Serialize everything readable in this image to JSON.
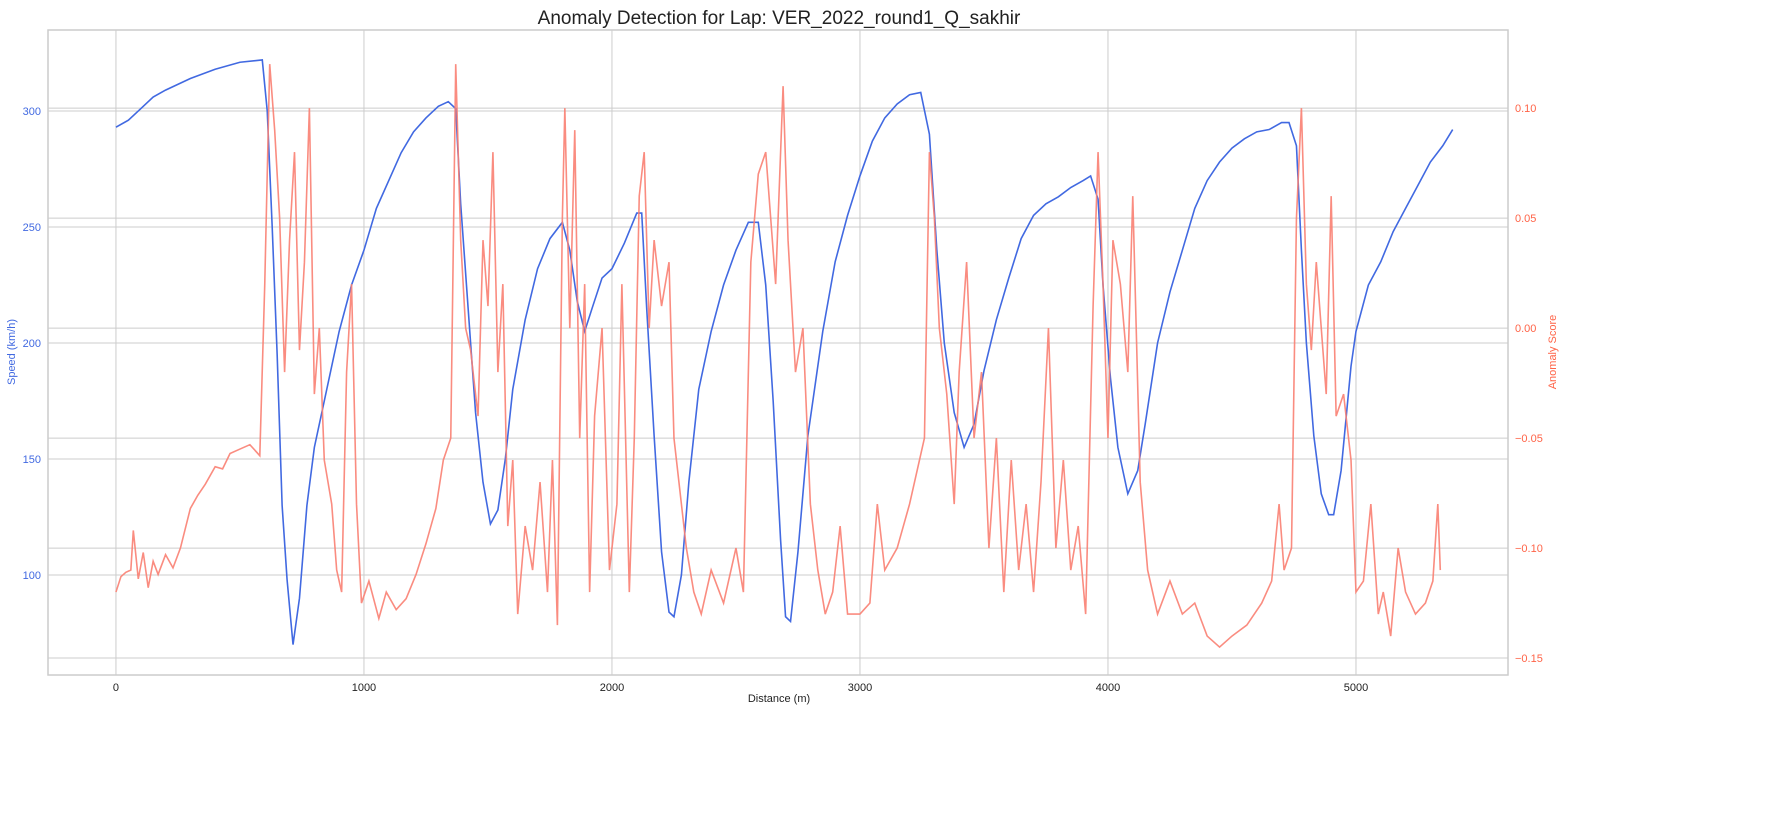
{
  "chart_data": {
    "type": "line",
    "title": "Anomaly Detection for Lap: VER_2022_round1_Q_sakhir",
    "xlabel": "Distance (m)",
    "ylabel": "Speed (km/h)",
    "y2label": "Anomaly Score",
    "xlim": [
      -274,
      5613
    ],
    "ylim": [
      56.9,
      334.9
    ],
    "y2lim": [
      -0.1577,
      0.1355
    ],
    "xticks": [
      0,
      1000,
      2000,
      3000,
      4000,
      5000
    ],
    "yticks": [
      100,
      150,
      200,
      250,
      300
    ],
    "y2ticks": [
      -0.15,
      -0.1,
      -0.05,
      0.0,
      0.05,
      0.1
    ],
    "y2tick_labels": [
      "−0.15",
      "−0.10",
      "−0.05",
      "0.00",
      "0.05",
      "0.10"
    ],
    "grid": true,
    "colors": {
      "speed": "#4169E1",
      "anomaly": "#FA8072",
      "anomaly_axis": "#FF6347"
    },
    "series": [
      {
        "name": "Speed",
        "axis": "left",
        "x": [
          0,
          50,
          100,
          150,
          200,
          300,
          400,
          500,
          590,
          610,
          630,
          650,
          670,
          690,
          714,
          740,
          770,
          800,
          850,
          900,
          950,
          1000,
          1050,
          1100,
          1150,
          1200,
          1250,
          1300,
          1340,
          1370,
          1390,
          1420,
          1450,
          1480,
          1510,
          1540,
          1570,
          1600,
          1650,
          1700,
          1750,
          1800,
          1830,
          1860,
          1890,
          1920,
          1960,
          2000,
          2050,
          2100,
          2120,
          2140,
          2170,
          2200,
          2230,
          2250,
          2280,
          2310,
          2350,
          2400,
          2450,
          2500,
          2550,
          2590,
          2620,
          2650,
          2680,
          2700,
          2720,
          2750,
          2790,
          2850,
          2900,
          2950,
          3000,
          3050,
          3100,
          3150,
          3200,
          3245,
          3280,
          3310,
          3340,
          3380,
          3420,
          3460,
          3500,
          3550,
          3600,
          3650,
          3700,
          3750,
          3800,
          3850,
          3900,
          3930,
          3960,
          3980,
          4010,
          4040,
          4080,
          4120,
          4150,
          4200,
          4250,
          4300,
          4350,
          4400,
          4450,
          4500,
          4550,
          4600,
          4650,
          4700,
          4730,
          4760,
          4780,
          4800,
          4830,
          4860,
          4890,
          4910,
          4940,
          4980,
          5000,
          5050,
          5100,
          5150,
          5200,
          5250,
          5300,
          5350,
          5390
        ],
        "y": [
          293,
          296,
          301,
          306,
          309,
          314,
          318,
          321,
          322,
          300,
          250,
          195,
          130,
          98,
          70,
          90,
          130,
          155,
          180,
          205,
          225,
          240,
          258,
          270,
          282,
          291,
          297,
          302,
          304,
          301,
          260,
          215,
          170,
          140,
          122,
          128,
          150,
          180,
          210,
          232,
          245,
          252,
          240,
          218,
          205,
          215,
          228,
          232,
          243,
          256,
          256,
          215,
          160,
          110,
          84,
          82,
          100,
          140,
          180,
          205,
          225,
          240,
          252,
          252,
          225,
          175,
          115,
          82,
          80,
          110,
          160,
          205,
          235,
          255,
          272,
          287,
          297,
          303,
          307,
          308,
          290,
          240,
          200,
          170,
          155,
          165,
          188,
          210,
          228,
          245,
          255,
          260,
          263,
          267,
          270,
          272,
          262,
          225,
          185,
          155,
          135,
          145,
          165,
          200,
          222,
          240,
          258,
          270,
          278,
          284,
          288,
          291,
          292,
          295,
          295,
          285,
          240,
          200,
          160,
          135,
          126,
          126,
          145,
          190,
          205,
          225,
          235,
          248,
          258,
          268,
          278,
          285,
          292
        ]
      },
      {
        "name": "Anomaly Score",
        "axis": "right",
        "x": [
          0,
          20,
          40,
          60,
          70,
          90,
          110,
          130,
          150,
          170,
          200,
          230,
          260,
          300,
          330,
          360,
          400,
          430,
          460,
          500,
          540,
          580,
          600,
          620,
          640,
          660,
          680,
          700,
          720,
          740,
          760,
          780,
          800,
          820,
          840,
          870,
          890,
          910,
          930,
          950,
          970,
          990,
          1020,
          1060,
          1090,
          1130,
          1170,
          1210,
          1250,
          1290,
          1320,
          1350,
          1370,
          1390,
          1410,
          1430,
          1460,
          1480,
          1500,
          1520,
          1540,
          1560,
          1580,
          1600,
          1620,
          1650,
          1680,
          1710,
          1740,
          1760,
          1780,
          1800,
          1810,
          1830,
          1850,
          1870,
          1890,
          1910,
          1930,
          1960,
          1990,
          2020,
          2040,
          2070,
          2090,
          2110,
          2130,
          2150,
          2170,
          2200,
          2230,
          2250,
          2270,
          2300,
          2330,
          2360,
          2400,
          2450,
          2500,
          2530,
          2560,
          2590,
          2620,
          2640,
          2660,
          2690,
          2710,
          2740,
          2770,
          2800,
          2830,
          2860,
          2890,
          2920,
          2950,
          3000,
          3040,
          3070,
          3100,
          3150,
          3200,
          3240,
          3260,
          3280,
          3300,
          3320,
          3350,
          3380,
          3400,
          3430,
          3460,
          3490,
          3520,
          3550,
          3580,
          3610,
          3640,
          3670,
          3700,
          3730,
          3760,
          3790,
          3820,
          3850,
          3880,
          3910,
          3940,
          3960,
          3980,
          4000,
          4020,
          4050,
          4080,
          4100,
          4130,
          4160,
          4200,
          4250,
          4300,
          4350,
          4400,
          4450,
          4500,
          4560,
          4620,
          4660,
          4690,
          4710,
          4740,
          4760,
          4780,
          4800,
          4820,
          4840,
          4860,
          4880,
          4900,
          4920,
          4950,
          4980,
          5000,
          5030,
          5060,
          5090,
          5110,
          5140,
          5170,
          5200,
          5240,
          5280,
          5310,
          5330,
          5340
        ],
        "y": [
          -0.12,
          -0.113,
          -0.111,
          -0.11,
          -0.092,
          -0.114,
          -0.102,
          -0.118,
          -0.106,
          -0.112,
          -0.103,
          -0.109,
          -0.1,
          -0.082,
          -0.076,
          -0.071,
          -0.063,
          -0.064,
          -0.057,
          -0.055,
          -0.053,
          -0.058,
          0.02,
          0.12,
          0.09,
          0.05,
          -0.02,
          0.04,
          0.08,
          -0.01,
          0.03,
          0.1,
          -0.03,
          0.0,
          -0.06,
          -0.08,
          -0.11,
          -0.12,
          -0.02,
          0.02,
          -0.08,
          -0.125,
          -0.115,
          -0.132,
          -0.12,
          -0.128,
          -0.123,
          -0.112,
          -0.098,
          -0.082,
          -0.06,
          -0.05,
          0.12,
          0.04,
          0.0,
          -0.01,
          -0.04,
          0.04,
          0.01,
          0.08,
          -0.02,
          0.02,
          -0.09,
          -0.06,
          -0.13,
          -0.09,
          -0.11,
          -0.07,
          -0.12,
          -0.06,
          -0.135,
          0.05,
          0.1,
          0.0,
          0.09,
          -0.05,
          0.02,
          -0.12,
          -0.04,
          0.0,
          -0.11,
          -0.08,
          0.02,
          -0.12,
          -0.05,
          0.06,
          0.08,
          0.0,
          0.04,
          0.01,
          0.03,
          -0.05,
          -0.07,
          -0.1,
          -0.12,
          -0.13,
          -0.11,
          -0.125,
          -0.1,
          -0.12,
          0.03,
          0.07,
          0.08,
          0.05,
          0.02,
          0.11,
          0.04,
          -0.02,
          0.0,
          -0.08,
          -0.11,
          -0.13,
          -0.12,
          -0.09,
          -0.13,
          -0.13,
          -0.125,
          -0.08,
          -0.11,
          -0.1,
          -0.08,
          -0.06,
          -0.05,
          0.08,
          0.05,
          0.0,
          -0.03,
          -0.08,
          -0.02,
          0.03,
          -0.05,
          -0.02,
          -0.1,
          -0.05,
          -0.12,
          -0.06,
          -0.11,
          -0.08,
          -0.12,
          -0.07,
          0.0,
          -0.1,
          -0.06,
          -0.11,
          -0.09,
          -0.13,
          0.01,
          0.08,
          0.02,
          -0.05,
          0.04,
          0.02,
          -0.02,
          0.06,
          -0.07,
          -0.11,
          -0.13,
          -0.115,
          -0.13,
          -0.125,
          -0.14,
          -0.145,
          -0.14,
          -0.135,
          -0.125,
          -0.115,
          -0.08,
          -0.11,
          -0.1,
          0.05,
          0.1,
          0.02,
          -0.01,
          0.03,
          0.0,
          -0.03,
          0.06,
          -0.04,
          -0.03,
          -0.06,
          -0.12,
          -0.115,
          -0.08,
          -0.13,
          -0.12,
          -0.14,
          -0.1,
          -0.12,
          -0.13,
          -0.125,
          -0.115,
          -0.08,
          -0.11
        ]
      }
    ]
  }
}
